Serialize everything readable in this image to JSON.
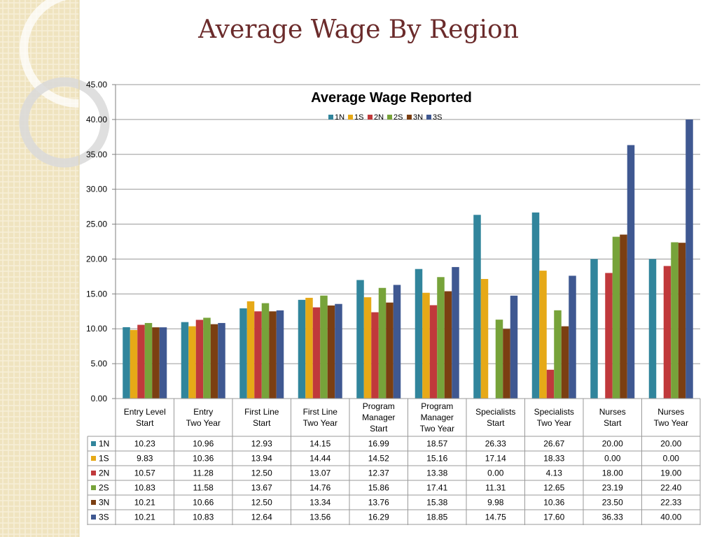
{
  "slide": {
    "title": "Average Wage By Region"
  },
  "colors": {
    "1N": "#31859C",
    "1S": "#E6A917",
    "2N": "#C0393B",
    "2S": "#77A33A",
    "3N": "#7B3F12",
    "3S": "#3F5891",
    "title": "#6B2B2B"
  },
  "chart_data": {
    "type": "bar",
    "title": "Average Wage Reported",
    "ylim": [
      0,
      45
    ],
    "yticks": [
      "0.00",
      "5.00",
      "10.00",
      "15.00",
      "20.00",
      "25.00",
      "30.00",
      "35.00",
      "40.00",
      "45.00"
    ],
    "grid": true,
    "legend_position": "top",
    "categories": [
      [
        "Entry Level",
        "Start"
      ],
      [
        "Entry",
        "Two Year"
      ],
      [
        "First Line",
        "Start"
      ],
      [
        "First Line",
        "Two Year"
      ],
      [
        "Program",
        "Manager",
        "Start"
      ],
      [
        "Program",
        "Manager",
        "Two Year"
      ],
      [
        "Specialists",
        "Start"
      ],
      [
        "Specialists",
        "Two Year"
      ],
      [
        "Nurses",
        "Start"
      ],
      [
        "Nurses",
        "Two Year"
      ]
    ],
    "series": [
      {
        "name": "1N",
        "color": "#31859C",
        "values": [
          10.23,
          10.96,
          12.93,
          14.15,
          16.99,
          18.57,
          26.33,
          26.67,
          20.0,
          20.0
        ],
        "labels": [
          "10.23",
          "10.96",
          "12.93",
          "14.15",
          "16.99",
          "18.57",
          "26.33",
          "26.67",
          "20.00",
          "20.00"
        ]
      },
      {
        "name": "1S",
        "color": "#E6A917",
        "values": [
          9.83,
          10.36,
          13.94,
          14.44,
          14.52,
          15.16,
          17.14,
          18.33,
          0.0,
          0.0
        ],
        "labels": [
          "9.83",
          "10.36",
          "13.94",
          "14.44",
          "14.52",
          "15.16",
          "17.14",
          "18.33",
          "0.00",
          "0.00"
        ]
      },
      {
        "name": "2N",
        "color": "#C0393B",
        "values": [
          10.57,
          11.28,
          12.5,
          13.07,
          12.37,
          13.38,
          0.0,
          4.13,
          18.0,
          19.0
        ],
        "labels": [
          "10.57",
          "11.28",
          "12.50",
          "13.07",
          "12.37",
          "13.38",
          "0.00",
          "4.13",
          "18.00",
          "19.00"
        ]
      },
      {
        "name": "2S",
        "color": "#77A33A",
        "values": [
          10.83,
          11.58,
          13.67,
          14.76,
          15.86,
          17.41,
          11.31,
          12.65,
          23.19,
          22.4
        ],
        "labels": [
          "10.83",
          "11.58",
          "13.67",
          "14.76",
          "15.86",
          "17.41",
          "11.31",
          "12.65",
          "23.19",
          "22.40"
        ]
      },
      {
        "name": "3N",
        "color": "#7B3F12",
        "values": [
          10.21,
          10.66,
          12.5,
          13.34,
          13.76,
          15.38,
          9.98,
          10.36,
          23.5,
          22.33
        ],
        "labels": [
          "10.21",
          "10.66",
          "12.50",
          "13.34",
          "13.76",
          "15.38",
          "9.98",
          "10.36",
          "23.50",
          "22.33"
        ]
      },
      {
        "name": "3S",
        "color": "#3F5891",
        "values": [
          10.21,
          10.83,
          12.64,
          13.56,
          16.29,
          18.85,
          14.75,
          17.6,
          36.33,
          40.0
        ],
        "labels": [
          "10.21",
          "10.83",
          "12.64",
          "13.56",
          "16.29",
          "18.85",
          "14.75",
          "17.60",
          "36.33",
          "40.00"
        ]
      }
    ]
  }
}
